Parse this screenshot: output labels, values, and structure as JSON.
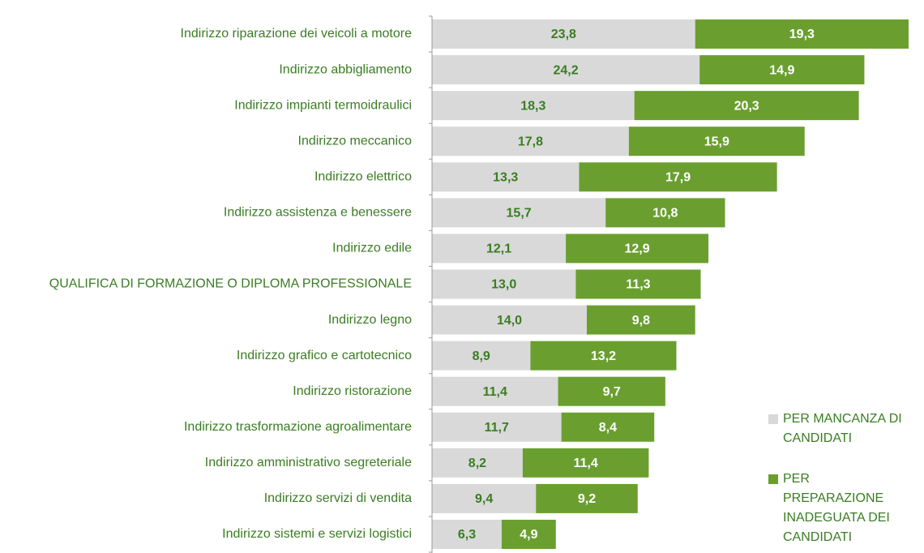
{
  "chart_data": {
    "type": "stacked-barh",
    "categories": [
      "Indirizzo riparazione dei veicoli a motore",
      "Indirizzo abbigliamento",
      "Indirizzo impianti termoidraulici",
      "Indirizzo meccanico",
      "Indirizzo elettrico",
      "Indirizzo assistenza e benessere",
      "Indirizzo edile",
      "QUALIFICA DI FORMAZIONE O DIPLOMA PROFESSIONALE",
      "Indirizzo legno",
      "Indirizzo grafico e cartotecnico",
      "Indirizzo ristorazione",
      "Indirizzo trasformazione agroalimentare",
      "Indirizzo amministrativo segreteriale",
      "Indirizzo servizi di vendita",
      "Indirizzo sistemi e servizi logistici"
    ],
    "series": [
      {
        "name": "PER MANCANZA DI CANDIDATI",
        "color": "#d9d9d9",
        "label_color": "#3a7d22",
        "values": [
          23.8,
          24.2,
          18.3,
          17.8,
          13.3,
          15.7,
          12.1,
          13.0,
          14.0,
          8.9,
          11.4,
          11.7,
          8.2,
          9.4,
          6.3
        ],
        "value_labels": [
          "23,8",
          "24,2",
          "18,3",
          "17,8",
          "13,3",
          "15,7",
          "12,1",
          "13,0",
          "14,0",
          "8,9",
          "11,4",
          "11,7",
          "8,2",
          "9,4",
          "6,3"
        ]
      },
      {
        "name": "PER PREPARAZIONE INADEGUATA DEI CANDIDATI",
        "color": "#6a9f2f",
        "label_color": "#ffffff",
        "values": [
          19.3,
          14.9,
          20.3,
          15.9,
          17.9,
          10.8,
          12.9,
          11.3,
          9.8,
          13.2,
          9.7,
          8.4,
          11.4,
          9.2,
          4.9
        ],
        "value_labels": [
          "19,3",
          "14,9",
          "20,3",
          "15,9",
          "17,9",
          "10,8",
          "12,9",
          "11,3",
          "9,8",
          "13,2",
          "9,7",
          "8,4",
          "11,4",
          "9,2",
          "4,9"
        ]
      }
    ]
  }
}
